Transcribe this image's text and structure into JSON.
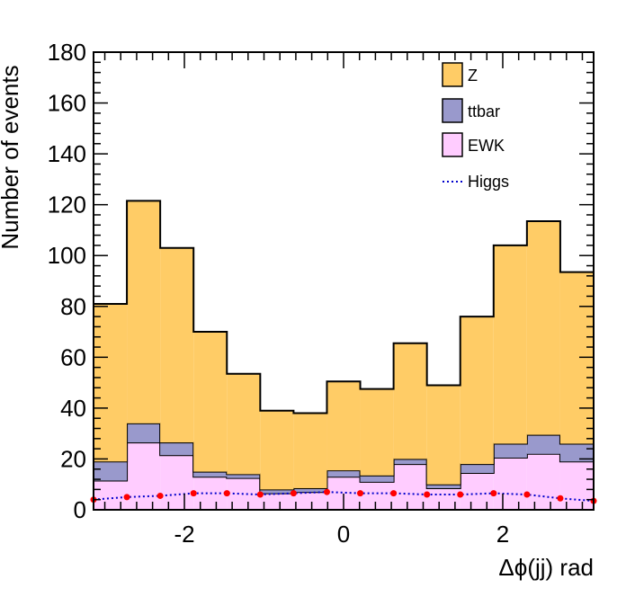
{
  "chart_data": {
    "type": "histogram",
    "xlabel": "Δϕ(jj) rad",
    "ylabel": "Number of events",
    "xlim": [
      -3.1416,
      3.1416
    ],
    "ylim": [
      0,
      180
    ],
    "x_ticks": [
      -2,
      0,
      2
    ],
    "y_ticks": [
      0,
      20,
      40,
      60,
      80,
      100,
      120,
      140,
      160,
      180
    ],
    "bin_edges": [
      -3.1416,
      -2.7227,
      -2.3038,
      -1.885,
      -1.4661,
      -1.0472,
      -0.6283,
      -0.2094,
      0.2094,
      0.6283,
      1.0472,
      1.4661,
      1.885,
      2.3038,
      2.7227,
      3.1416
    ],
    "stacked": true,
    "series": [
      {
        "name": "EWK",
        "color": "#ffccff",
        "values": [
          11.5,
          26.5,
          21.5,
          13.0,
          12.5,
          6.5,
          7.0,
          13.0,
          11.0,
          18.0,
          8.5,
          14.5,
          20.5,
          22.0,
          19.0
        ]
      },
      {
        "name": "ttbar",
        "color": "#9999cc",
        "values": [
          7.5,
          7.5,
          5.0,
          2.0,
          1.5,
          1.5,
          1.5,
          2.5,
          2.5,
          2.0,
          1.5,
          3.5,
          5.5,
          7.5,
          7.0
        ]
      },
      {
        "name": "Z",
        "color": "#ffcc66",
        "values": [
          62.0,
          87.5,
          76.5,
          55.0,
          39.5,
          31.0,
          29.5,
          35.0,
          34.0,
          45.5,
          39.0,
          58.0,
          78.0,
          84.0,
          67.5
        ]
      }
    ],
    "overlay": {
      "name": "Higgs",
      "color": "#0000cc",
      "marker_color": "#ff0000",
      "style": "dotted",
      "values": [
        4.0,
        5.0,
        5.5,
        6.5,
        6.5,
        6.0,
        6.5,
        7.0,
        6.5,
        6.5,
        6.0,
        6.0,
        6.5,
        6.0,
        4.5,
        3.5
      ]
    },
    "legend": {
      "position": "top-right",
      "entries": [
        "Z",
        "ttbar",
        "EWK",
        "Higgs"
      ]
    },
    "grid": false
  }
}
